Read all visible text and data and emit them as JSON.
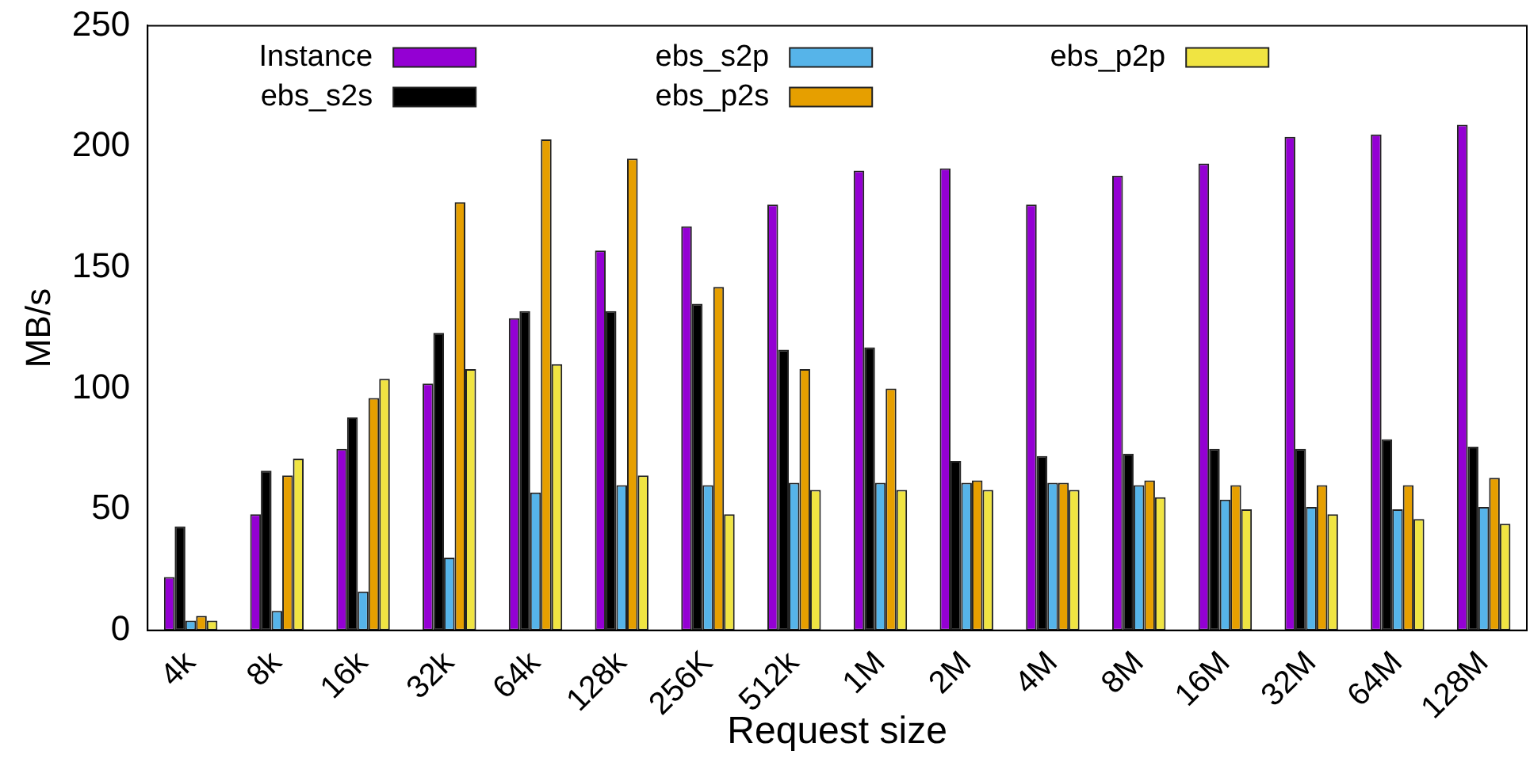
{
  "chart_data": {
    "type": "bar",
    "xlabel": "Request size",
    "ylabel": "MB/s",
    "categories": [
      "4k",
      "8k",
      "16k",
      "32k",
      "64k",
      "128k",
      "256K",
      "512k",
      "1M",
      "2M",
      "4M",
      "8M",
      "16M",
      "32M",
      "64M",
      "128M"
    ],
    "series": [
      {
        "name": "Instance",
        "color": "#9400d3",
        "values": [
          22,
          48,
          75,
          102,
          129,
          157,
          167,
          176,
          190,
          191,
          176,
          188,
          193,
          204,
          205,
          209
        ]
      },
      {
        "name": "ebs_s2s",
        "color": "#000000",
        "values": [
          43,
          66,
          88,
          123,
          132,
          132,
          135,
          116,
          117,
          70,
          72,
          73,
          75,
          75,
          79,
          76
        ]
      },
      {
        "name": "ebs_s2p",
        "color": "#56b4e9",
        "values": [
          4,
          8,
          16,
          30,
          57,
          60,
          60,
          61,
          61,
          61,
          61,
          60,
          54,
          51,
          50,
          51
        ]
      },
      {
        "name": "ebs_p2s",
        "color": "#e69f00",
        "values": [
          6,
          64,
          96,
          177,
          203,
          195,
          142,
          108,
          100,
          62,
          61,
          62,
          60,
          60,
          60,
          63
        ]
      },
      {
        "name": "ebs_p2p",
        "color": "#f0e442",
        "values": [
          4,
          71,
          104,
          108,
          110,
          64,
          48,
          58,
          58,
          58,
          58,
          55,
          50,
          48,
          46,
          44
        ]
      }
    ],
    "ylim": [
      0,
      250
    ],
    "yticks": [
      0,
      50,
      100,
      150,
      200,
      250
    ],
    "grid": false,
    "legend": "top left"
  }
}
